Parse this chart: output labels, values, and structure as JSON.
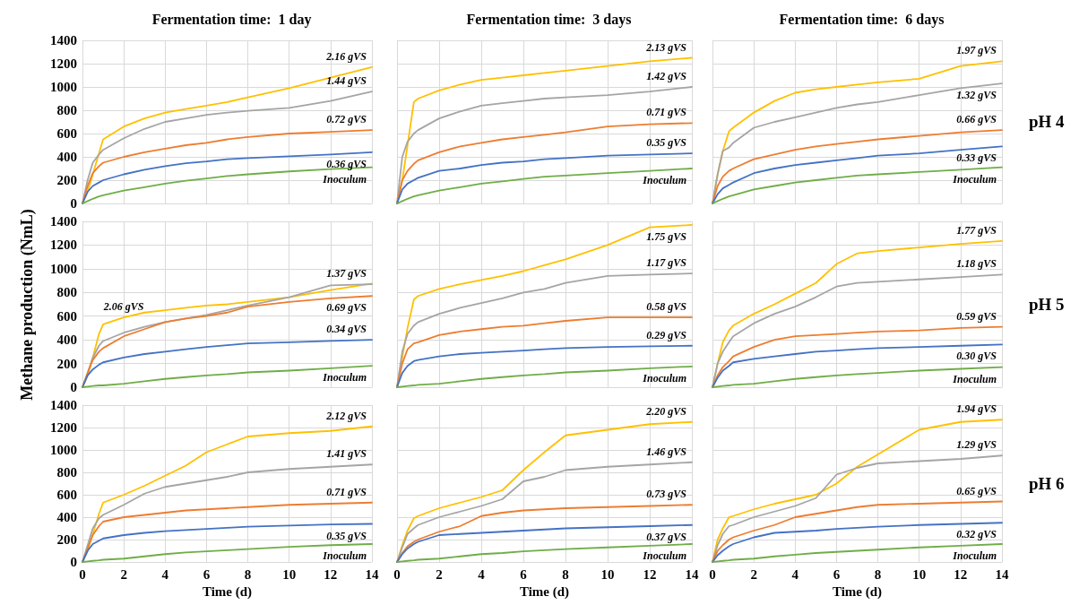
{
  "chart_data": [
    {
      "type": "line",
      "title": "Fermentation time:  1 day",
      "x": [
        0,
        0.25,
        0.5,
        0.8,
        1,
        2,
        3,
        4,
        5,
        6,
        7,
        8,
        10,
        12,
        14
      ],
      "xlim": [
        0,
        14
      ],
      "xticks": [
        0,
        2,
        4,
        6,
        8,
        10,
        12,
        14
      ],
      "ylim": [
        0,
        1400
      ],
      "yticks": [
        0,
        200,
        400,
        600,
        800,
        1000,
        1200,
        1400
      ],
      "grid": true,
      "tick_labels": "y",
      "series": [
        {
          "name": "2.16 gVS",
          "color": "#ffc000",
          "values": [
            0,
            100,
            250,
            430,
            550,
            660,
            730,
            780,
            810,
            840,
            870,
            910,
            990,
            1080,
            1170
          ]
        },
        {
          "name": "1.44 gVS",
          "color": "#a5a5a5",
          "values": [
            0,
            200,
            350,
            420,
            460,
            560,
            640,
            700,
            730,
            760,
            780,
            795,
            820,
            880,
            960
          ]
        },
        {
          "name": "0.72 gVS",
          "color": "#ed7d31",
          "values": [
            0,
            150,
            260,
            320,
            350,
            400,
            440,
            470,
            500,
            520,
            550,
            570,
            600,
            615,
            630
          ]
        },
        {
          "name": "0.36 gVS",
          "color": "#4472c4",
          "values": [
            0,
            100,
            150,
            180,
            200,
            250,
            290,
            320,
            345,
            360,
            380,
            390,
            405,
            420,
            440
          ]
        },
        {
          "name": "Inoculum",
          "color": "#70ad47",
          "values": [
            0,
            20,
            40,
            60,
            70,
            110,
            140,
            170,
            195,
            215,
            235,
            250,
            275,
            295,
            310
          ]
        }
      ]
    },
    {
      "type": "line",
      "title": "Fermentation time:  3 days",
      "x": [
        0,
        0.25,
        0.5,
        0.8,
        1,
        2,
        3,
        4,
        5,
        6,
        7,
        8,
        10,
        12,
        14
      ],
      "xlim": [
        0,
        14
      ],
      "xticks": [
        0,
        2,
        4,
        6,
        8,
        10,
        12,
        14
      ],
      "ylim": [
        0,
        1400
      ],
      "yticks": [
        0,
        200,
        400,
        600,
        800,
        1000,
        1200,
        1400
      ],
      "grid": true,
      "tick_labels": false,
      "series": [
        {
          "name": "2.13 gVS",
          "color": "#ffc000",
          "values": [
            0,
            200,
            500,
            870,
            900,
            970,
            1020,
            1060,
            1080,
            1100,
            1120,
            1140,
            1180,
            1220,
            1250
          ]
        },
        {
          "name": "1.42 gVS",
          "color": "#a5a5a5",
          "values": [
            0,
            400,
            530,
            600,
            630,
            730,
            790,
            840,
            860,
            880,
            900,
            910,
            930,
            960,
            1000
          ]
        },
        {
          "name": "0.71 gVS",
          "color": "#ed7d31",
          "values": [
            0,
            200,
            280,
            340,
            370,
            440,
            490,
            520,
            550,
            570,
            590,
            610,
            660,
            680,
            690
          ]
        },
        {
          "name": "0.35 gVS",
          "color": "#4472c4",
          "values": [
            0,
            120,
            170,
            200,
            220,
            280,
            300,
            330,
            350,
            360,
            380,
            390,
            410,
            420,
            430
          ]
        },
        {
          "name": "Inoculum",
          "color": "#70ad47",
          "values": [
            0,
            20,
            40,
            60,
            70,
            110,
            140,
            170,
            190,
            210,
            230,
            240,
            260,
            280,
            300
          ]
        }
      ]
    },
    {
      "type": "line",
      "title": "Fermentation time:  6 days",
      "y2label": "pH 4",
      "x": [
        0,
        0.25,
        0.5,
        0.8,
        1,
        2,
        3,
        4,
        5,
        6,
        7,
        8,
        10,
        12,
        14
      ],
      "xlim": [
        0,
        14
      ],
      "xticks": [
        0,
        2,
        4,
        6,
        8,
        10,
        12,
        14
      ],
      "ylim": [
        0,
        1400
      ],
      "yticks": [
        0,
        200,
        400,
        600,
        800,
        1000,
        1200,
        1400
      ],
      "grid": true,
      "tick_labels": false,
      "series": [
        {
          "name": "1.97 gVS",
          "color": "#ffc000",
          "values": [
            0,
            250,
            450,
            620,
            650,
            780,
            880,
            950,
            980,
            1000,
            1020,
            1040,
            1070,
            1180,
            1220
          ]
        },
        {
          "name": "1.32 gVS",
          "color": "#a5a5a5",
          "values": [
            0,
            250,
            450,
            480,
            520,
            650,
            700,
            740,
            780,
            820,
            850,
            870,
            930,
            990,
            1030
          ]
        },
        {
          "name": "0.66 gVS",
          "color": "#ed7d31",
          "values": [
            0,
            150,
            230,
            280,
            300,
            380,
            420,
            460,
            490,
            510,
            530,
            550,
            580,
            610,
            630
          ]
        },
        {
          "name": "0.33 gVS",
          "color": "#4472c4",
          "values": [
            0,
            80,
            130,
            160,
            180,
            260,
            300,
            330,
            350,
            370,
            390,
            410,
            430,
            460,
            490
          ]
        },
        {
          "name": "Inoculum",
          "color": "#70ad47",
          "values": [
            0,
            20,
            40,
            60,
            70,
            120,
            150,
            180,
            200,
            220,
            240,
            250,
            270,
            290,
            310
          ]
        }
      ]
    },
    {
      "type": "line",
      "ylabel": "Methane production (NmL)",
      "x": [
        0,
        0.25,
        0.5,
        0.8,
        1,
        2,
        3,
        4,
        5,
        6,
        7,
        8,
        10,
        12,
        14
      ],
      "xlim": [
        0,
        14
      ],
      "xticks": [
        0,
        2,
        4,
        6,
        8,
        10,
        12,
        14
      ],
      "ylim": [
        0,
        1400
      ],
      "yticks": [
        0,
        200,
        400,
        600,
        800,
        1000,
        1200,
        1400
      ],
      "grid": true,
      "tick_labels": "y",
      "series": [
        {
          "name": "2.06 gVS",
          "color": "#ffc000",
          "values": [
            0,
            100,
            250,
            450,
            530,
            590,
            630,
            650,
            670,
            690,
            700,
            720,
            760,
            820,
            875
          ]
        },
        {
          "name": "1.37 gVS",
          "color": "#a5a5a5",
          "values": [
            0,
            120,
            250,
            350,
            390,
            460,
            510,
            550,
            580,
            610,
            650,
            690,
            760,
            860,
            870
          ]
        },
        {
          "name": "0.69 gVS",
          "color": "#ed7d31",
          "values": [
            0,
            120,
            230,
            300,
            330,
            430,
            490,
            550,
            580,
            600,
            630,
            680,
            720,
            750,
            770
          ]
        },
        {
          "name": "0.34 gVS",
          "color": "#4472c4",
          "values": [
            0,
            100,
            150,
            190,
            210,
            250,
            280,
            300,
            320,
            340,
            355,
            370,
            380,
            390,
            400
          ]
        },
        {
          "name": "Inoculum",
          "color": "#70ad47",
          "values": [
            0,
            5,
            10,
            15,
            15,
            30,
            50,
            70,
            85,
            100,
            110,
            125,
            140,
            160,
            180
          ]
        }
      ]
    },
    {
      "type": "line",
      "x": [
        0,
        0.25,
        0.5,
        0.8,
        1,
        2,
        3,
        4,
        5,
        6,
        7,
        8,
        10,
        12,
        14
      ],
      "xlim": [
        0,
        14
      ],
      "xticks": [
        0,
        2,
        4,
        6,
        8,
        10,
        12,
        14
      ],
      "ylim": [
        0,
        1400
      ],
      "yticks": [
        0,
        200,
        400,
        600,
        800,
        1000,
        1200,
        1400
      ],
      "grid": true,
      "tick_labels": false,
      "series": [
        {
          "name": "1.75 gVS",
          "color": "#ffc000",
          "values": [
            0,
            250,
            500,
            740,
            770,
            830,
            870,
            905,
            940,
            980,
            1030,
            1080,
            1200,
            1350,
            1370
          ]
        },
        {
          "name": "1.17 gVS",
          "color": "#a5a5a5",
          "values": [
            0,
            300,
            450,
            520,
            550,
            620,
            670,
            710,
            750,
            800,
            830,
            880,
            940,
            950,
            960
          ]
        },
        {
          "name": "0.58 gVS",
          "color": "#ed7d31",
          "values": [
            0,
            200,
            320,
            370,
            380,
            440,
            470,
            490,
            510,
            520,
            540,
            560,
            590,
            590,
            590
          ]
        },
        {
          "name": "0.29 gVS",
          "color": "#4472c4",
          "values": [
            0,
            120,
            180,
            220,
            230,
            260,
            280,
            290,
            300,
            310,
            320,
            330,
            340,
            345,
            350
          ]
        },
        {
          "name": "Inoculum",
          "color": "#70ad47",
          "values": [
            0,
            5,
            10,
            15,
            20,
            30,
            50,
            70,
            85,
            100,
            110,
            125,
            140,
            160,
            175
          ]
        }
      ]
    },
    {
      "type": "line",
      "y2label": "pH 5",
      "x": [
        0,
        0.25,
        0.5,
        0.8,
        1,
        2,
        3,
        4,
        5,
        6,
        7,
        8,
        10,
        12,
        14
      ],
      "xlim": [
        0,
        14
      ],
      "xticks": [
        0,
        2,
        4,
        6,
        8,
        10,
        12,
        14
      ],
      "ylim": [
        0,
        1400
      ],
      "yticks": [
        0,
        200,
        400,
        600,
        800,
        1000,
        1200,
        1400
      ],
      "grid": true,
      "tick_labels": false,
      "series": [
        {
          "name": "1.77 gVS",
          "color": "#ffc000",
          "values": [
            0,
            200,
            380,
            480,
            520,
            620,
            700,
            790,
            880,
            1040,
            1130,
            1150,
            1180,
            1210,
            1235
          ]
        },
        {
          "name": "1.18 gVS",
          "color": "#a5a5a5",
          "values": [
            0,
            200,
            300,
            380,
            430,
            540,
            620,
            680,
            760,
            850,
            880,
            890,
            910,
            930,
            950
          ]
        },
        {
          "name": "0.59 gVS",
          "color": "#ed7d31",
          "values": [
            0,
            100,
            170,
            220,
            260,
            340,
            400,
            430,
            440,
            450,
            460,
            470,
            480,
            500,
            510
          ]
        },
        {
          "name": "0.30 gVS",
          "color": "#4472c4",
          "values": [
            0,
            80,
            140,
            180,
            210,
            240,
            260,
            280,
            300,
            310,
            320,
            330,
            340,
            350,
            360
          ]
        },
        {
          "name": "Inoculum",
          "color": "#70ad47",
          "values": [
            0,
            5,
            10,
            15,
            20,
            30,
            50,
            70,
            85,
            100,
            110,
            120,
            140,
            155,
            170
          ]
        }
      ]
    },
    {
      "type": "line",
      "xlabel": "Time (d)",
      "x": [
        0,
        0.25,
        0.5,
        0.8,
        1,
        2,
        3,
        4,
        5,
        6,
        7,
        8,
        10,
        12,
        14
      ],
      "xlim": [
        0,
        14
      ],
      "xticks": [
        0,
        2,
        4,
        6,
        8,
        10,
        12,
        14
      ],
      "ylim": [
        0,
        1400
      ],
      "yticks": [
        0,
        200,
        400,
        600,
        800,
        1000,
        1200,
        1400
      ],
      "grid": true,
      "series": [
        {
          "name": "2.12 gVS",
          "color": "#ffc000",
          "values": [
            0,
            100,
            250,
            430,
            530,
            600,
            680,
            770,
            860,
            980,
            1050,
            1120,
            1150,
            1170,
            1210
          ]
        },
        {
          "name": "1.41 gVS",
          "color": "#a5a5a5",
          "values": [
            0,
            150,
            300,
            390,
            420,
            510,
            610,
            670,
            700,
            730,
            760,
            800,
            830,
            850,
            870
          ]
        },
        {
          "name": "0.71 gVS",
          "color": "#ed7d31",
          "values": [
            0,
            120,
            240,
            320,
            360,
            400,
            420,
            440,
            460,
            470,
            480,
            490,
            510,
            520,
            530
          ]
        },
        {
          "name": "0.35 gVS",
          "color": "#4472c4",
          "values": [
            0,
            100,
            160,
            190,
            210,
            240,
            260,
            275,
            285,
            295,
            305,
            315,
            325,
            335,
            340
          ]
        },
        {
          "name": "Inoculum",
          "color": "#70ad47",
          "values": [
            0,
            5,
            10,
            15,
            20,
            30,
            50,
            70,
            85,
            95,
            105,
            115,
            135,
            150,
            160
          ]
        }
      ]
    },
    {
      "type": "line",
      "xlabel": "Time (d)",
      "x": [
        0,
        0.25,
        0.5,
        0.8,
        1,
        2,
        3,
        4,
        5,
        6,
        7,
        8,
        10,
        12,
        14
      ],
      "xlim": [
        0,
        14
      ],
      "xticks": [
        0,
        2,
        4,
        6,
        8,
        10,
        12,
        14
      ],
      "ylim": [
        0,
        1400
      ],
      "yticks": [
        0,
        200,
        400,
        600,
        800,
        1000,
        1200,
        1400
      ],
      "grid": true,
      "tick_labels": "x",
      "series": [
        {
          "name": "2.20 gVS",
          "color": "#ffc000",
          "values": [
            0,
            150,
            280,
            390,
            410,
            480,
            530,
            580,
            640,
            820,
            980,
            1130,
            1180,
            1230,
            1250
          ]
        },
        {
          "name": "1.46 gVS",
          "color": "#a5a5a5",
          "values": [
            0,
            130,
            250,
            300,
            330,
            400,
            450,
            500,
            560,
            720,
            760,
            820,
            850,
            870,
            890
          ]
        },
        {
          "name": "0.73 gVS",
          "color": "#ed7d31",
          "values": [
            0,
            80,
            140,
            180,
            200,
            270,
            320,
            410,
            440,
            460,
            470,
            480,
            490,
            500,
            510
          ]
        },
        {
          "name": "0.37 gVS",
          "color": "#4472c4",
          "values": [
            0,
            70,
            120,
            160,
            180,
            240,
            250,
            260,
            270,
            280,
            290,
            300,
            310,
            320,
            330
          ]
        },
        {
          "name": "Inoculum",
          "color": "#70ad47",
          "values": [
            0,
            5,
            10,
            15,
            20,
            30,
            50,
            70,
            80,
            95,
            105,
            115,
            130,
            145,
            160
          ]
        }
      ]
    },
    {
      "type": "line",
      "xlabel": "Time (d)",
      "y2label": "pH 6",
      "x": [
        0,
        0.25,
        0.5,
        0.8,
        1,
        2,
        3,
        4,
        5,
        6,
        7,
        8,
        10,
        12,
        14
      ],
      "xlim": [
        0,
        14
      ],
      "xticks": [
        0,
        2,
        4,
        6,
        8,
        10,
        12,
        14
      ],
      "ylim": [
        0,
        1400
      ],
      "yticks": [
        0,
        200,
        400,
        600,
        800,
        1000,
        1200,
        1400
      ],
      "grid": true,
      "tick_labels": "x",
      "series": [
        {
          "name": "1.94 gVS",
          "color": "#ffc000",
          "values": [
            0,
            200,
            300,
            400,
            410,
            470,
            520,
            560,
            600,
            700,
            850,
            960,
            1180,
            1250,
            1270
          ]
        },
        {
          "name": "1.29 gVS",
          "color": "#a5a5a5",
          "values": [
            0,
            150,
            250,
            320,
            330,
            400,
            450,
            500,
            570,
            780,
            840,
            880,
            900,
            920,
            950
          ]
        },
        {
          "name": "0.65 gVS",
          "color": "#ed7d31",
          "values": [
            0,
            100,
            150,
            200,
            220,
            280,
            330,
            400,
            430,
            460,
            490,
            510,
            520,
            530,
            540
          ]
        },
        {
          "name": "0.32 gVS",
          "color": "#4472c4",
          "values": [
            0,
            60,
            100,
            140,
            160,
            220,
            260,
            270,
            280,
            295,
            305,
            315,
            330,
            340,
            350
          ]
        },
        {
          "name": "Inoculum",
          "color": "#70ad47",
          "values": [
            0,
            5,
            10,
            15,
            20,
            30,
            50,
            65,
            80,
            90,
            100,
            110,
            130,
            145,
            160
          ]
        }
      ]
    }
  ]
}
